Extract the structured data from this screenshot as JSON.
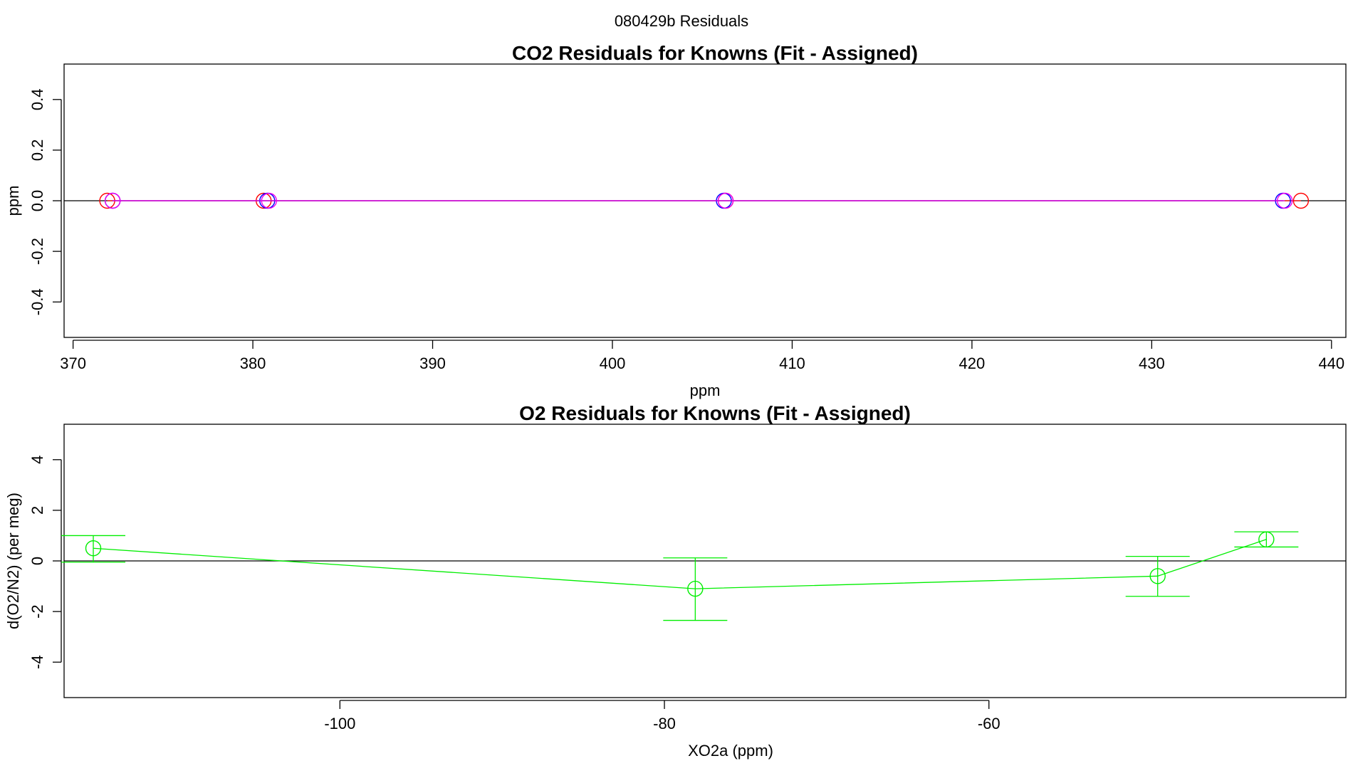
{
  "suptitle": "080429b  Residuals",
  "colors": {
    "red": "#ff0000",
    "blue": "#0000ff",
    "magenta": "#ee00ee",
    "green": "#00ee00",
    "ink": "#000000"
  },
  "chart_data": [
    {
      "type": "scatter",
      "title": "CO2 Residuals for Knowns (Fit - Assigned)",
      "xlabel": "ppm",
      "ylabel": "ppm",
      "xlim": [
        369.5,
        440.8
      ],
      "ylim": [
        -0.54,
        0.54
      ],
      "xticks": [
        370,
        380,
        390,
        400,
        410,
        420,
        430,
        440
      ],
      "yticks": [
        -0.4,
        -0.2,
        0.0,
        0.2,
        0.4
      ],
      "grid": false,
      "reference_line_y": 0,
      "series": [
        {
          "color": "#ff0000",
          "x": [
            371.9,
            380.6,
            406.3,
            438.3
          ],
          "y": [
            0,
            0,
            0,
            0
          ]
        },
        {
          "color": "#0000ff",
          "x": [
            372.2,
            380.8,
            406.2,
            437.3
          ],
          "y": [
            0,
            0,
            0,
            0
          ]
        },
        {
          "color": "#ee00ee",
          "x": [
            372.2,
            380.9,
            406.3,
            437.4
          ],
          "y": [
            0,
            0,
            0,
            0
          ]
        }
      ]
    },
    {
      "type": "scatter",
      "title": "O2 Residuals for Knowns (Fit - Assigned)",
      "xlabel": "XO2a (ppm)",
      "ylabel": "d(O2/N2) (per meg)",
      "xlim": [
        -117.0,
        -38.0
      ],
      "ylim": [
        -5.4,
        5.4
      ],
      "xticks": [
        -100,
        -80,
        -60
      ],
      "yticks": [
        -4,
        -2,
        0,
        2,
        4
      ],
      "grid": false,
      "reference_line_y": 0,
      "series": [
        {
          "color": "#00ee00",
          "x": [
            -115.2,
            -78.1,
            -49.6,
            -42.9
          ],
          "y": [
            0.5,
            -1.1,
            -0.6,
            0.85
          ],
          "err_low": [
            -0.05,
            -2.35,
            -1.4,
            0.55
          ],
          "err_high": [
            1.0,
            0.12,
            0.18,
            1.15
          ]
        }
      ]
    }
  ]
}
